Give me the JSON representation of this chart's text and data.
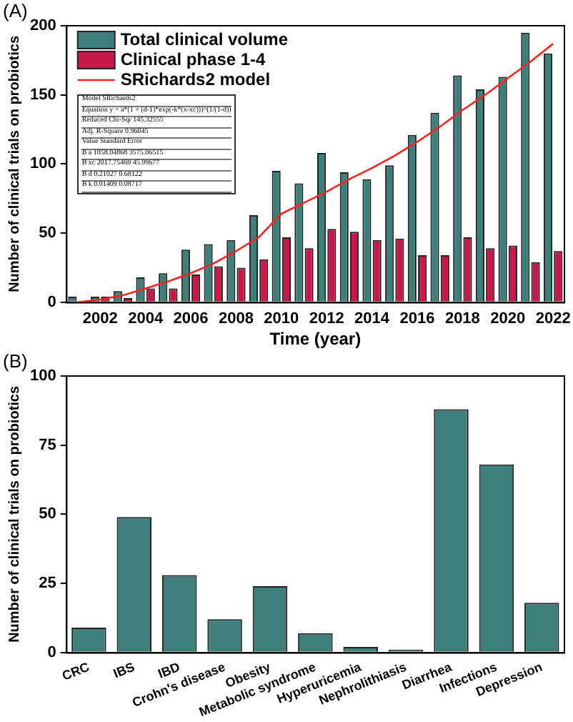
{
  "chart_data": [
    {
      "type": "bar",
      "title": "(A)",
      "xlabel": "Time (year)",
      "ylabel": "Number of clinical trials on probiotics",
      "categories": [
        null,
        "2002",
        null,
        "2004",
        null,
        "2006",
        null,
        "2008",
        null,
        "2010",
        null,
        "2012",
        null,
        "2014",
        null,
        "2016",
        null,
        "2018",
        null,
        "2020",
        null,
        "2022"
      ],
      "series": [
        {
          "name": "Total clinical volume",
          "color": "#3f7f7b",
          "values": [
            4,
            4,
            8,
            18,
            21,
            38,
            42,
            45,
            63,
            95,
            86,
            108,
            94,
            89,
            99,
            121,
            137,
            164,
            154,
            163,
            195,
            180
          ]
        },
        {
          "name": "Clinical phase 1-4",
          "color": "#c8174a",
          "values": [
            0,
            4,
            3,
            10,
            10,
            20,
            26,
            25,
            31,
            47,
            39,
            53,
            51,
            45,
            46,
            34,
            34,
            47,
            39,
            41,
            29,
            37
          ]
        },
        {
          "name": "SRichards2 model",
          "type": "line",
          "color": "#ff2020",
          "values": [
            0,
            2,
            5,
            10,
            15,
            21,
            28,
            37,
            47,
            64,
            72,
            80,
            89,
            97,
            106,
            116,
            127,
            139,
            150,
            162,
            174,
            187
          ]
        }
      ],
      "ylim": [
        0,
        200
      ],
      "yticks": [
        0,
        50,
        100,
        150,
        200
      ],
      "grid": false,
      "legend": "top left",
      "annotations": [
        "Model  SRichards2",
        "Equation  y = a*(1 + (d-1)*exp(-k*(x-xc)))^(1/(1-d))",
        "Reduced Chi-Sqr  145.32555",
        "Adj. R-Square  0.96045",
        "Value  Standard Error",
        "B  a  1058.04868  3575.06515",
        "B  xc  2017.75469  45.99677",
        "B  d  0.21027  0.68122",
        "B  k  0.01409  0.08717"
      ]
    },
    {
      "type": "bar",
      "title": "(B)",
      "ylabel": "Number of clinical trials on probiotics",
      "categories": [
        "CRC",
        "IBS",
        "IBD",
        "Crohn's disease",
        "Obesity",
        "Metabolic syndrome",
        "Hyperuricemia",
        "Nephrolithiasis",
        "Diarrhea",
        "Infections",
        "Depression"
      ],
      "values": [
        9,
        49,
        28,
        12,
        24,
        7,
        2,
        1,
        88,
        68,
        18
      ],
      "color": "#3f7f7b",
      "ylim": [
        0,
        100
      ],
      "yticks": [
        0,
        25,
        50,
        75,
        100
      ],
      "grid": false,
      "legend": false
    }
  ]
}
